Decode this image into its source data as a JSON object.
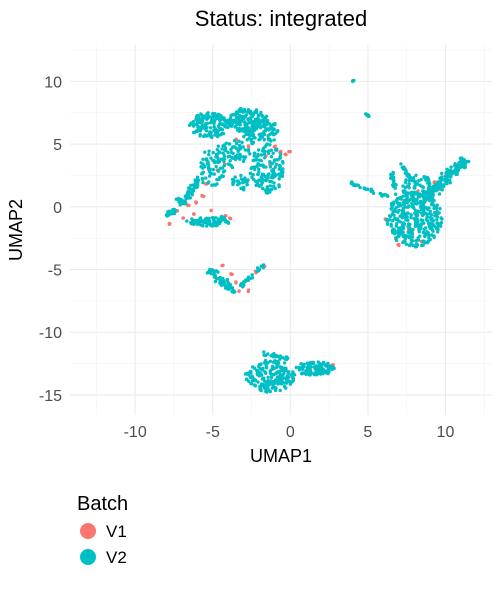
{
  "chart_data": {
    "type": "scatter",
    "title": "Status: integrated",
    "xlabel": "UMAP1",
    "ylabel": "UMAP2",
    "xlim": [
      -14.2,
      13.0
    ],
    "ylim": [
      -16.6,
      12.9
    ],
    "x_ticks": [
      -10,
      -5,
      0,
      5,
      10
    ],
    "y_ticks": [
      10,
      5,
      0,
      -5,
      -10,
      -15
    ],
    "x_tick_labels": [
      "-10",
      "-5",
      "0",
      "5",
      "10"
    ],
    "y_tick_labels": [
      "10",
      "5",
      "0",
      "-5",
      "-10",
      "-15"
    ],
    "grid": true,
    "legend": {
      "title": "Batch",
      "position": "bottom-left"
    },
    "series": [
      {
        "name": "V1",
        "color": "#F8766D",
        "points": [
          [
            -1.0,
            4.8
          ],
          [
            -0.6,
            4.4
          ],
          [
            -0.3,
            4.2
          ],
          [
            0.0,
            4.4
          ],
          [
            -1.6,
            4.0
          ],
          [
            -1.3,
            3.4
          ],
          [
            -2.7,
            4.8
          ],
          [
            -3.5,
            5.4
          ],
          [
            -4.2,
            3.4
          ],
          [
            -4.7,
            2.9
          ],
          [
            -5.4,
            1.8
          ],
          [
            -5.7,
            0.9
          ],
          [
            -6.1,
            0.4
          ],
          [
            -6.6,
            0.1
          ],
          [
            -7.3,
            -0.3
          ],
          [
            -6.9,
            -0.9
          ],
          [
            -6.2,
            -0.6
          ],
          [
            -5.1,
            -0.3
          ],
          [
            -7.8,
            -1.4
          ],
          [
            -4.2,
            -0.7
          ],
          [
            -3.9,
            -0.9
          ],
          [
            -4.4,
            -4.7
          ],
          [
            -3.8,
            -5.4
          ],
          [
            -3.5,
            -6.0
          ],
          [
            -3.0,
            -6.2
          ],
          [
            -2.7,
            -6.7
          ],
          [
            -3.3,
            -6.7
          ],
          [
            -1.7,
            -4.7
          ],
          [
            -2.2,
            -5.2
          ],
          [
            -0.5,
            -13.0
          ],
          [
            1.2,
            -13.0
          ],
          [
            2.0,
            -12.8
          ],
          [
            2.7,
            -12.6
          ],
          [
            6.2,
            -1.0
          ],
          [
            6.8,
            -2.5
          ],
          [
            7.5,
            0.5
          ],
          [
            8.2,
            1.2
          ],
          [
            8.8,
            0.6
          ],
          [
            9.5,
            -0.5
          ],
          [
            9.3,
            2.0
          ],
          [
            10.0,
            2.4
          ],
          [
            10.5,
            2.8
          ],
          [
            11.0,
            3.2
          ],
          [
            11.3,
            3.6
          ],
          [
            7.0,
            -3.0
          ],
          [
            8.5,
            -2.8
          ],
          [
            7.7,
            -1.8
          ],
          [
            9.0,
            -1.5
          ]
        ]
      },
      {
        "name": "V2",
        "color": "#00BFC4",
        "clusters": [
          {
            "type": "ellipse",
            "cx": -5.2,
            "cy": 6.5,
            "rx": 1.3,
            "ry": 1.0,
            "n": 160
          },
          {
            "type": "ellipse",
            "cx": -2.7,
            "cy": 6.9,
            "rx": 1.3,
            "ry": 1.0,
            "n": 140
          },
          {
            "type": "ellipse",
            "cx": -1.9,
            "cy": 6.0,
            "rx": 1.2,
            "ry": 1.1,
            "n": 90
          },
          {
            "type": "ellipse",
            "cx": -1.5,
            "cy": 3.0,
            "rx": 1.1,
            "ry": 2.0,
            "n": 140
          },
          {
            "type": "ellipse",
            "cx": -3.6,
            "cy": 4.2,
            "rx": 1.0,
            "ry": 1.1,
            "n": 60
          },
          {
            "type": "ellipse",
            "cx": -5.0,
            "cy": 3.3,
            "rx": 0.8,
            "ry": 1.8,
            "n": 70
          },
          {
            "type": "ellipse",
            "cx": -3.2,
            "cy": 1.9,
            "rx": 0.6,
            "ry": 0.6,
            "n": 30
          },
          {
            "type": "line",
            "x1": -5.7,
            "y1": 2.3,
            "x2": -7.2,
            "y2": 0.2,
            "w": 0.45,
            "n": 70
          },
          {
            "type": "line",
            "x1": -7.5,
            "y1": -0.2,
            "x2": -8.0,
            "y2": -0.7,
            "w": 0.35,
            "n": 30
          },
          {
            "type": "ellipse",
            "cx": -5.3,
            "cy": -1.2,
            "rx": 1.4,
            "ry": 0.35,
            "n": 70
          },
          {
            "type": "line",
            "x1": -4.2,
            "y1": -0.8,
            "x2": -4.8,
            "y2": -1.3,
            "w": 0.3,
            "n": 15
          },
          {
            "type": "line",
            "x1": -5.3,
            "y1": -5.0,
            "x2": -3.6,
            "y2": -6.8,
            "w": 0.45,
            "n": 60
          },
          {
            "type": "line",
            "x1": -3.2,
            "y1": -6.3,
            "x2": -1.7,
            "y2": -4.6,
            "w": 0.25,
            "n": 25
          },
          {
            "type": "ellipse",
            "cx": -1.3,
            "cy": -13.5,
            "rx": 1.6,
            "ry": 1.3,
            "n": 190
          },
          {
            "type": "ellipse",
            "cx": 1.6,
            "cy": -12.9,
            "rx": 1.3,
            "ry": 0.55,
            "n": 110
          },
          {
            "type": "line",
            "x1": -1.8,
            "y1": -11.7,
            "x2": -0.1,
            "y2": -12.1,
            "w": 0.2,
            "n": 25
          },
          {
            "type": "ellipse",
            "cx": 8.0,
            "cy": -1.0,
            "rx": 1.8,
            "ry": 2.2,
            "n": 330
          },
          {
            "type": "ellipse",
            "cx": 8.2,
            "cy": 1.6,
            "rx": 1.0,
            "ry": 1.0,
            "n": 70
          },
          {
            "type": "line",
            "x1": 8.6,
            "y1": 0.6,
            "x2": 11.3,
            "y2": 3.8,
            "w": 0.55,
            "n": 160
          },
          {
            "type": "line",
            "x1": 6.8,
            "y1": 1.0,
            "x2": 6.5,
            "y2": 2.9,
            "w": 0.2,
            "n": 20
          },
          {
            "type": "line",
            "x1": 7.6,
            "y1": 2.4,
            "x2": 7.1,
            "y2": 3.5,
            "w": 0.2,
            "n": 15
          },
          {
            "type": "line",
            "x1": 3.8,
            "y1": 1.9,
            "x2": 6.3,
            "y2": 0.8,
            "w": 0.2,
            "n": 30
          },
          {
            "type": "line",
            "x1": 4.8,
            "y1": 7.5,
            "x2": 5.1,
            "y2": 7.2,
            "w": 0.1,
            "n": 8
          },
          {
            "type": "line",
            "x1": 4.0,
            "y1": 10.0,
            "x2": 4.1,
            "y2": 10.1,
            "w": 0.05,
            "n": 5
          }
        ]
      }
    ]
  }
}
